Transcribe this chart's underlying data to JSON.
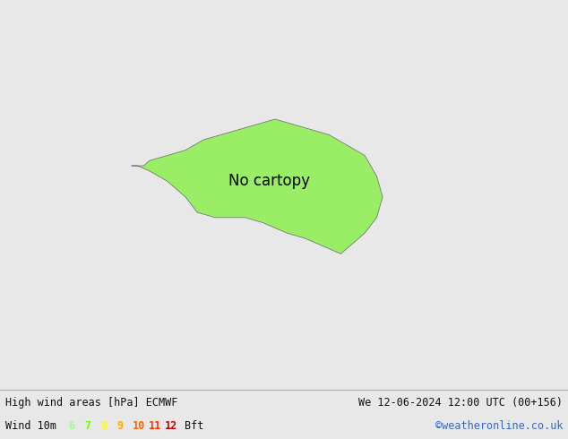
{
  "title_left": "High wind areas [hPa] ECMWF",
  "title_right": "We 12-06-2024 12:00 UTC (00+156)",
  "subtitle_left": "Wind 10m",
  "subtitle_right": "©weatheronline.co.uk",
  "wind_labels": [
    "6",
    "7",
    "8",
    "9",
    "10",
    "11",
    "12"
  ],
  "wind_colors": [
    "#99ff99",
    "#66ff00",
    "#ffff00",
    "#ffaa00",
    "#ff6600",
    "#ff3300",
    "#cc0000"
  ],
  "wind_suffix": "Bft",
  "bg_color": "#e8e8e8",
  "land_color": "#99ee66",
  "land_color_grey": "#b8c8a0",
  "sea_color": "#e8e8e8",
  "contour_color_red": "#cc0000",
  "contour_color_black": "#111111",
  "footer_bg": "#ffffff",
  "footer_text_color": "#111111",
  "fig_width": 6.34,
  "fig_height": 4.9,
  "dpi": 100,
  "extent": [
    90,
    185,
    -65,
    10
  ]
}
